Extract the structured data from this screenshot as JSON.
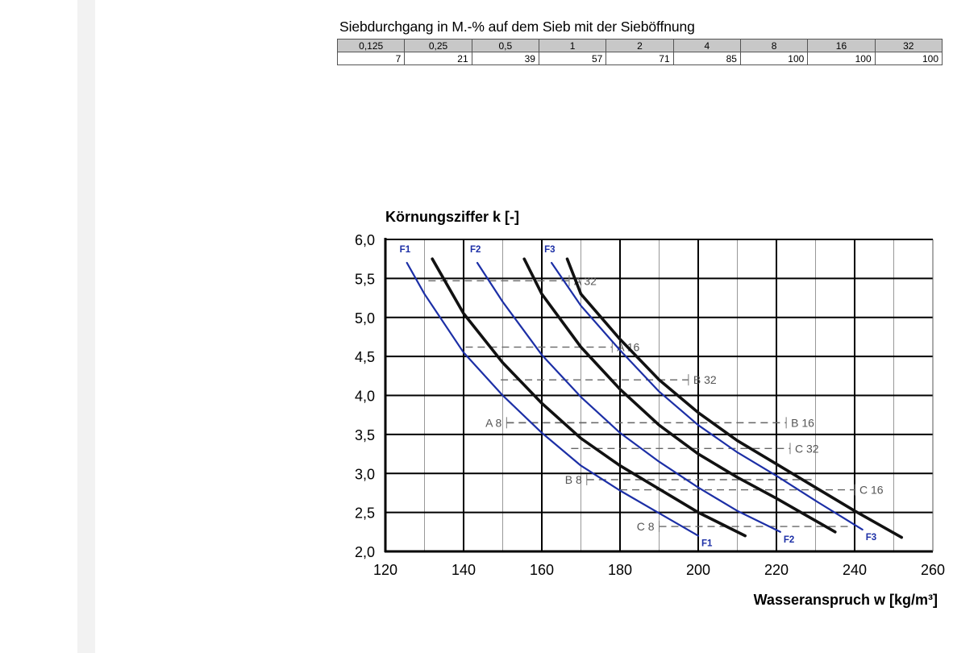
{
  "sieve_table": {
    "caption": "Siebdurchgang in M.-% auf dem Sieb mit der Sieböffnung",
    "openings": [
      "0,125",
      "0,25",
      "0,5",
      "1",
      "2",
      "4",
      "8",
      "16",
      "32"
    ],
    "passing": [
      "7",
      "21",
      "39",
      "57",
      "71",
      "85",
      "100",
      "100",
      "100"
    ]
  },
  "chart_data": {
    "type": "line",
    "ylabel": "Körnungsziffer k [-]",
    "xlabel": "Wasseranspruch w [kg/m³]",
    "xlim": [
      120,
      260
    ],
    "ylim": [
      2.0,
      6.0
    ],
    "x_ticks": [
      "120",
      "140",
      "160",
      "180",
      "200",
      "220",
      "240",
      "260"
    ],
    "y_ticks": [
      "2,0",
      "2,5",
      "3,0",
      "3,5",
      "4,0",
      "4,5",
      "5,0",
      "5,5",
      "6,0"
    ],
    "grid": true,
    "colors": {
      "consistency_curves": "#1c2fa6",
      "boundary_curves": "#111111",
      "grading_lines": "#666666"
    },
    "series": [
      {
        "name": "F1",
        "color": "#1c2fa6",
        "points": [
          [
            125.5,
            5.7
          ],
          [
            130,
            5.3
          ],
          [
            140,
            4.55
          ],
          [
            150,
            4.0
          ],
          [
            160,
            3.52
          ],
          [
            170,
            3.1
          ],
          [
            180,
            2.78
          ],
          [
            190,
            2.49
          ],
          [
            200,
            2.2
          ]
        ]
      },
      {
        "name": "F2",
        "color": "#1c2fa6",
        "points": [
          [
            143.5,
            5.7
          ],
          [
            150,
            5.2
          ],
          [
            160,
            4.52
          ],
          [
            170,
            3.98
          ],
          [
            180,
            3.52
          ],
          [
            190,
            3.15
          ],
          [
            200,
            2.82
          ],
          [
            210,
            2.52
          ],
          [
            221,
            2.25
          ]
        ]
      },
      {
        "name": "F3",
        "color": "#1c2fa6",
        "points": [
          [
            162.5,
            5.7
          ],
          [
            170,
            5.15
          ],
          [
            180,
            4.58
          ],
          [
            190,
            4.05
          ],
          [
            200,
            3.62
          ],
          [
            210,
            3.27
          ],
          [
            220,
            2.97
          ],
          [
            230,
            2.65
          ],
          [
            242,
            2.28
          ]
        ]
      },
      {
        "name": "",
        "color": "#111111",
        "points": [
          [
            132,
            5.75
          ],
          [
            140,
            5.05
          ],
          [
            150,
            4.42
          ],
          [
            160,
            3.9
          ],
          [
            170,
            3.45
          ],
          [
            180,
            3.1
          ],
          [
            190,
            2.8
          ],
          [
            200,
            2.5
          ],
          [
            212,
            2.2
          ]
        ]
      },
      {
        "name": "",
        "color": "#111111",
        "points": [
          [
            155.5,
            5.75
          ],
          [
            160,
            5.3
          ],
          [
            170,
            4.62
          ],
          [
            180,
            4.08
          ],
          [
            190,
            3.62
          ],
          [
            200,
            3.25
          ],
          [
            210,
            2.95
          ],
          [
            220,
            2.68
          ],
          [
            235,
            2.25
          ]
        ]
      },
      {
        "name": "",
        "color": "#111111",
        "points": [
          [
            166.5,
            5.75
          ],
          [
            170,
            5.3
          ],
          [
            180,
            4.72
          ],
          [
            190,
            4.2
          ],
          [
            200,
            3.78
          ],
          [
            210,
            3.42
          ],
          [
            220,
            3.12
          ],
          [
            230,
            2.82
          ],
          [
            240,
            2.52
          ],
          [
            252,
            2.18
          ]
        ]
      }
    ],
    "grading_lines": [
      {
        "label": "A 32",
        "y": 5.47,
        "x_start": 131,
        "x_end": 167,
        "label_side": "right"
      },
      {
        "label": "A 16",
        "y": 4.62,
        "x_start": 140.5,
        "x_end": 178,
        "label_side": "right"
      },
      {
        "label": "B 32",
        "y": 4.2,
        "x_start": 149.5,
        "x_end": 197.5,
        "label_side": "right"
      },
      {
        "label": "B 16",
        "y": 3.65,
        "x_start": 151,
        "x_end": 222.5,
        "label_side": "right"
      },
      {
        "label": "A 8",
        "y": 3.65,
        "x_start": 151,
        "x_end": 173,
        "label_side": "left"
      },
      {
        "label": "C 32",
        "y": 3.32,
        "x_start": 167.5,
        "x_end": 223.5,
        "label_side": "right"
      },
      {
        "label": "B 8",
        "y": 2.92,
        "x_start": 171.5,
        "x_end": 229,
        "label_side": "left"
      },
      {
        "label": "C 16",
        "y": 2.79,
        "x_start": 180,
        "x_end": 240,
        "label_side": "right"
      },
      {
        "label": "C 8",
        "y": 2.32,
        "x_start": 190,
        "x_end": 238.5,
        "label_side": "left"
      }
    ]
  }
}
